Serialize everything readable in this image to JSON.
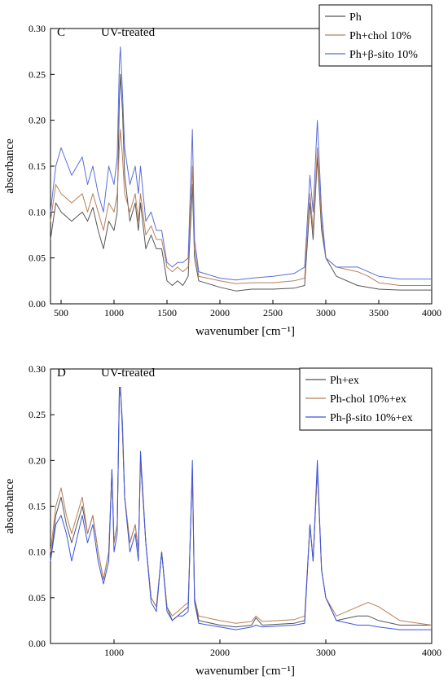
{
  "chart_data": [
    {
      "type": "line",
      "panel_label": "C",
      "title": "UV-treated",
      "xlabel": "wavenumber [cm⁻¹]",
      "ylabel": "absorbance",
      "xlim": [
        400,
        4000
      ],
      "ylim": [
        0,
        0.3
      ],
      "xticks": [
        500,
        1000,
        1500,
        2000,
        2500,
        3000,
        3500,
        4000
      ],
      "yticks": [
        0.0,
        0.05,
        0.1,
        0.15,
        0.2,
        0.25,
        0.3
      ],
      "legend_position": "top-right",
      "series": [
        {
          "name": "Ph",
          "color": "#555555",
          "x": [
            400,
            450,
            500,
            600,
            700,
            750,
            800,
            850,
            900,
            950,
            1000,
            1030,
            1050,
            1060,
            1080,
            1100,
            1150,
            1200,
            1230,
            1250,
            1300,
            1350,
            1400,
            1450,
            1500,
            1550,
            1600,
            1650,
            1700,
            1740,
            1760,
            1800,
            2000,
            2150,
            2300,
            2500,
            2700,
            2800,
            2850,
            2880,
            2920,
            2960,
            3000,
            3100,
            3300,
            3400,
            3500,
            3700,
            4000
          ],
          "y": [
            0.07,
            0.11,
            0.1,
            0.09,
            0.1,
            0.09,
            0.105,
            0.08,
            0.06,
            0.09,
            0.08,
            0.1,
            0.22,
            0.25,
            0.21,
            0.14,
            0.09,
            0.11,
            0.08,
            0.11,
            0.06,
            0.075,
            0.06,
            0.06,
            0.025,
            0.02,
            0.025,
            0.02,
            0.03,
            0.13,
            0.05,
            0.025,
            0.018,
            0.014,
            0.016,
            0.016,
            0.017,
            0.02,
            0.11,
            0.07,
            0.16,
            0.08,
            0.05,
            0.03,
            0.02,
            0.018,
            0.016,
            0.015,
            0.015
          ]
        },
        {
          "name": "Ph+chol 10%",
          "color": "#b8805a",
          "x": [
            400,
            450,
            500,
            600,
            700,
            750,
            800,
            850,
            900,
            950,
            1000,
            1030,
            1050,
            1060,
            1080,
            1100,
            1150,
            1200,
            1230,
            1250,
            1300,
            1350,
            1400,
            1450,
            1500,
            1550,
            1600,
            1650,
            1700,
            1740,
            1760,
            1800,
            2000,
            2150,
            2300,
            2500,
            2700,
            2800,
            2850,
            2880,
            2920,
            2960,
            3000,
            3100,
            3300,
            3400,
            3500,
            3700,
            4000
          ],
          "y": [
            0.09,
            0.13,
            0.12,
            0.11,
            0.12,
            0.1,
            0.12,
            0.1,
            0.08,
            0.11,
            0.1,
            0.12,
            0.17,
            0.19,
            0.16,
            0.12,
            0.1,
            0.12,
            0.09,
            0.12,
            0.075,
            0.085,
            0.07,
            0.07,
            0.04,
            0.035,
            0.04,
            0.035,
            0.04,
            0.15,
            0.06,
            0.03,
            0.025,
            0.022,
            0.023,
            0.023,
            0.025,
            0.028,
            0.12,
            0.08,
            0.17,
            0.09,
            0.05,
            0.04,
            0.035,
            0.03,
            0.023,
            0.02,
            0.02
          ]
        },
        {
          "name": "Ph+β-sito 10%",
          "color": "#5a6ed8",
          "x": [
            400,
            450,
            500,
            600,
            700,
            750,
            800,
            850,
            900,
            950,
            1000,
            1030,
            1050,
            1060,
            1080,
            1100,
            1150,
            1200,
            1230,
            1250,
            1300,
            1350,
            1400,
            1450,
            1500,
            1550,
            1600,
            1650,
            1700,
            1740,
            1760,
            1800,
            2000,
            2150,
            2300,
            2500,
            2700,
            2800,
            2850,
            2880,
            2920,
            2960,
            3000,
            3100,
            3300,
            3400,
            3500,
            3700,
            4000
          ],
          "y": [
            0.1,
            0.15,
            0.17,
            0.14,
            0.16,
            0.13,
            0.15,
            0.12,
            0.1,
            0.15,
            0.13,
            0.16,
            0.26,
            0.28,
            0.23,
            0.17,
            0.13,
            0.15,
            0.12,
            0.15,
            0.09,
            0.1,
            0.08,
            0.08,
            0.045,
            0.04,
            0.045,
            0.045,
            0.05,
            0.19,
            0.07,
            0.035,
            0.028,
            0.026,
            0.028,
            0.03,
            0.033,
            0.04,
            0.14,
            0.1,
            0.2,
            0.1,
            0.05,
            0.04,
            0.04,
            0.035,
            0.03,
            0.027,
            0.027
          ]
        }
      ]
    },
    {
      "type": "line",
      "panel_label": "D",
      "title": "UV-treated",
      "xlabel": "wavenumber [cm⁻¹]",
      "ylabel": "absorbance",
      "xlim": [
        400,
        4000
      ],
      "ylim": [
        0,
        0.3
      ],
      "xticks": [
        1000,
        2000,
        3000,
        4000
      ],
      "yticks": [
        0.0,
        0.05,
        0.1,
        0.15,
        0.2,
        0.25,
        0.3
      ],
      "legend_position": "top-right",
      "series": [
        {
          "name": "Ph+ex",
          "color": "#555555",
          "x": [
            400,
            450,
            500,
            550,
            600,
            700,
            750,
            800,
            850,
            900,
            950,
            980,
            1000,
            1030,
            1050,
            1060,
            1080,
            1100,
            1150,
            1200,
            1230,
            1250,
            1300,
            1350,
            1400,
            1450,
            1500,
            1550,
            1600,
            1650,
            1700,
            1740,
            1760,
            1800,
            2000,
            2150,
            2300,
            2340,
            2400,
            2700,
            2800,
            2850,
            2880,
            2920,
            2960,
            3000,
            3100,
            3300,
            3400,
            3500,
            3700,
            4000
          ],
          "y": [
            0.09,
            0.14,
            0.16,
            0.13,
            0.11,
            0.15,
            0.12,
            0.14,
            0.1,
            0.07,
            0.1,
            0.19,
            0.11,
            0.13,
            0.27,
            0.28,
            0.23,
            0.16,
            0.11,
            0.13,
            0.1,
            0.2,
            0.11,
            0.05,
            0.04,
            0.1,
            0.04,
            0.025,
            0.03,
            0.035,
            0.04,
            0.19,
            0.05,
            0.025,
            0.02,
            0.018,
            0.02,
            0.028,
            0.02,
            0.022,
            0.025,
            0.13,
            0.09,
            0.19,
            0.08,
            0.05,
            0.025,
            0.03,
            0.03,
            0.025,
            0.02,
            0.02
          ]
        },
        {
          "name": "Ph-chol 10%+ex",
          "color": "#b8805a",
          "x": [
            400,
            450,
            500,
            550,
            600,
            700,
            750,
            800,
            850,
            900,
            950,
            980,
            1000,
            1030,
            1050,
            1060,
            1080,
            1100,
            1150,
            1200,
            1230,
            1250,
            1300,
            1350,
            1400,
            1450,
            1500,
            1550,
            1600,
            1650,
            1700,
            1740,
            1760,
            1800,
            2000,
            2150,
            2300,
            2340,
            2400,
            2700,
            2800,
            2850,
            2880,
            2920,
            2960,
            3000,
            3100,
            3300,
            3400,
            3500,
            3700,
            4000
          ],
          "y": [
            0.1,
            0.15,
            0.17,
            0.14,
            0.12,
            0.16,
            0.12,
            0.14,
            0.1,
            0.07,
            0.1,
            0.19,
            0.11,
            0.13,
            0.27,
            0.28,
            0.23,
            0.16,
            0.11,
            0.13,
            0.1,
            0.2,
            0.11,
            0.05,
            0.04,
            0.1,
            0.04,
            0.03,
            0.035,
            0.04,
            0.045,
            0.19,
            0.05,
            0.03,
            0.025,
            0.022,
            0.024,
            0.03,
            0.024,
            0.026,
            0.03,
            0.13,
            0.09,
            0.19,
            0.08,
            0.05,
            0.03,
            0.04,
            0.045,
            0.04,
            0.025,
            0.02
          ]
        },
        {
          "name": "Ph-β-sito 10%+ex",
          "color": "#3a55e0",
          "x": [
            400,
            450,
            500,
            550,
            600,
            700,
            750,
            800,
            850,
            900,
            950,
            980,
            1000,
            1030,
            1050,
            1060,
            1080,
            1100,
            1150,
            1200,
            1230,
            1250,
            1300,
            1350,
            1400,
            1450,
            1500,
            1550,
            1600,
            1650,
            1700,
            1740,
            1760,
            1800,
            2000,
            2150,
            2300,
            2340,
            2400,
            2700,
            2800,
            2850,
            2880,
            2920,
            2960,
            3000,
            3100,
            3300,
            3400,
            3500,
            3700,
            4000
          ],
          "y": [
            0.09,
            0.13,
            0.14,
            0.12,
            0.09,
            0.14,
            0.11,
            0.13,
            0.09,
            0.065,
            0.09,
            0.19,
            0.1,
            0.12,
            0.28,
            0.28,
            0.24,
            0.16,
            0.1,
            0.12,
            0.09,
            0.21,
            0.11,
            0.045,
            0.035,
            0.1,
            0.035,
            0.025,
            0.03,
            0.03,
            0.035,
            0.2,
            0.045,
            0.022,
            0.018,
            0.015,
            0.018,
            0.02,
            0.018,
            0.02,
            0.022,
            0.13,
            0.09,
            0.2,
            0.08,
            0.05,
            0.025,
            0.02,
            0.02,
            0.018,
            0.015,
            0.015
          ]
        }
      ]
    }
  ]
}
